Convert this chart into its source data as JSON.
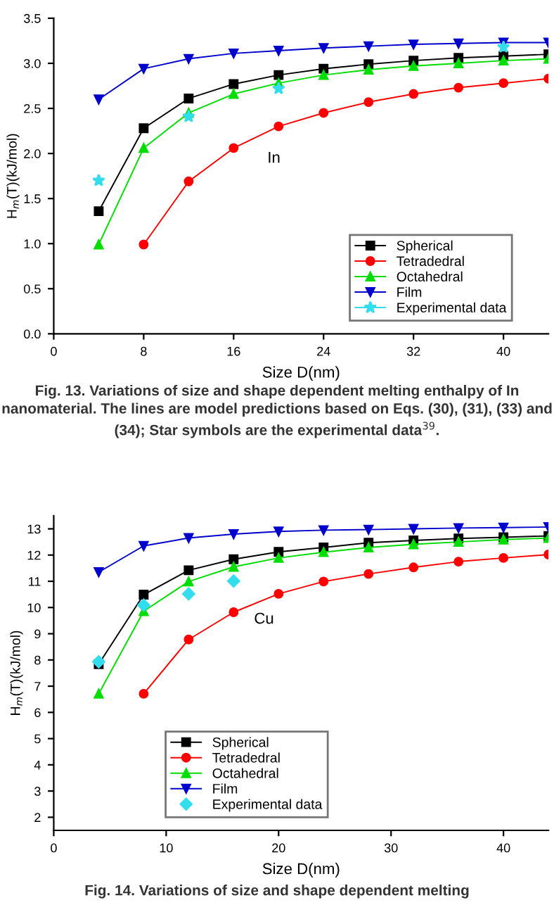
{
  "chart_data": [
    {
      "type": "line",
      "xlabel": "Size D(nm)",
      "ylabel": "H$_{m}$(T)(kJ/mol)",
      "x": [
        4,
        8,
        12,
        16,
        20,
        24,
        28,
        32,
        36,
        40,
        44
      ],
      "xlim": [
        0,
        44
      ],
      "xticks": [
        0,
        8,
        16,
        24,
        32,
        40
      ],
      "ylim": [
        0,
        3.5
      ],
      "yticks": [
        {
          "value": 0,
          "label": "0.0"
        },
        0.5,
        {
          "value": 1,
          "label": "1.0"
        },
        1.5,
        {
          "value": 2,
          "label": "2.0"
        },
        2.5,
        {
          "value": 3,
          "label": "3.0"
        },
        3.5
      ],
      "legend": "bottom right",
      "grid": false,
      "series": [
        {
          "name": "Spherical",
          "color": "#000000",
          "marker": "square",
          "values": [
            1.36,
            2.28,
            2.61,
            2.77,
            2.87,
            2.94,
            2.99,
            3.03,
            3.06,
            3.08,
            3.1
          ]
        },
        {
          "name": "Tetradedral",
          "color": "#ff0000",
          "marker": "circle",
          "values": [
            null,
            0.99,
            1.69,
            2.06,
            2.3,
            2.45,
            2.57,
            2.66,
            2.73,
            2.78,
            2.83
          ]
        },
        {
          "name": "Octahedral",
          "color": "#00dd00",
          "marker": "triangle",
          "values": [
            0.99,
            2.06,
            2.45,
            2.66,
            2.78,
            2.87,
            2.93,
            2.97,
            3.0,
            3.03,
            3.05
          ]
        },
        {
          "name": "Film",
          "color": "#0000cc",
          "marker": "triangle_down",
          "values": [
            2.6,
            2.94,
            3.05,
            3.11,
            3.14,
            3.17,
            3.19,
            3.21,
            3.22,
            3.23,
            3.23
          ]
        },
        {
          "name": "Experimental data",
          "type": "scatter",
          "color": "#33ddee",
          "marker": "star",
          "x": [
            4,
            12,
            20,
            40
          ],
          "values": [
            1.7,
            2.41,
            2.72,
            3.18
          ]
        }
      ],
      "annotations": [
        "In",
        "Fig. 13. Variations of size and shape dependent melting enthalpy of In nanomaterial. The lines are model predictions based on Eqs. (30), (31), (33) and (34); Star symbols are the experimental data$^{39}$."
      ]
    },
    {
      "type": "line",
      "xlabel": "Size D(nm)",
      "ylabel": "H$_{m}$(T)(kJ/mol)",
      "x": [
        4,
        8,
        12,
        16,
        20,
        24,
        28,
        32,
        36,
        40,
        44
      ],
      "xlim": [
        0,
        44
      ],
      "xticks": [
        0,
        10,
        20,
        30,
        40
      ],
      "ylim": [
        1.5,
        13.5
      ],
      "yticks": [
        2,
        3,
        4,
        5,
        6,
        7,
        8,
        9,
        10,
        11,
        12,
        13
      ],
      "legend": "bottom",
      "grid": false,
      "series": [
        {
          "name": "Spherical",
          "color": "#000000",
          "marker": "square",
          "values": [
            7.84,
            10.49,
            11.42,
            11.84,
            12.12,
            12.29,
            12.47,
            12.56,
            12.63,
            12.68,
            12.73
          ]
        },
        {
          "name": "Tetradedral",
          "color": "#ff0000",
          "marker": "circle",
          "values": [
            null,
            6.71,
            8.78,
            9.82,
            10.52,
            10.99,
            11.28,
            11.53,
            11.75,
            11.89,
            12.02
          ]
        },
        {
          "name": "Octahedral",
          "color": "#00dd00",
          "marker": "triangle",
          "values": [
            6.71,
            9.86,
            10.99,
            11.55,
            11.89,
            12.11,
            12.29,
            12.41,
            12.5,
            12.59,
            12.65
          ]
        },
        {
          "name": "Film",
          "color": "#0000cc",
          "marker": "triangle_down",
          "values": [
            11.35,
            12.35,
            12.65,
            12.8,
            12.9,
            12.95,
            12.97,
            13.0,
            13.03,
            13.05,
            13.07
          ]
        },
        {
          "name": "Experimental data",
          "type": "scatter",
          "color": "#33ddee",
          "marker": "diamond",
          "x": [
            4,
            8,
            12,
            16
          ],
          "values": [
            7.93,
            10.09,
            10.52,
            11.01
          ]
        }
      ],
      "annotations": [
        "Cu",
        "Fig. 14. Variations of size and shape dependent melting"
      ]
    }
  ]
}
